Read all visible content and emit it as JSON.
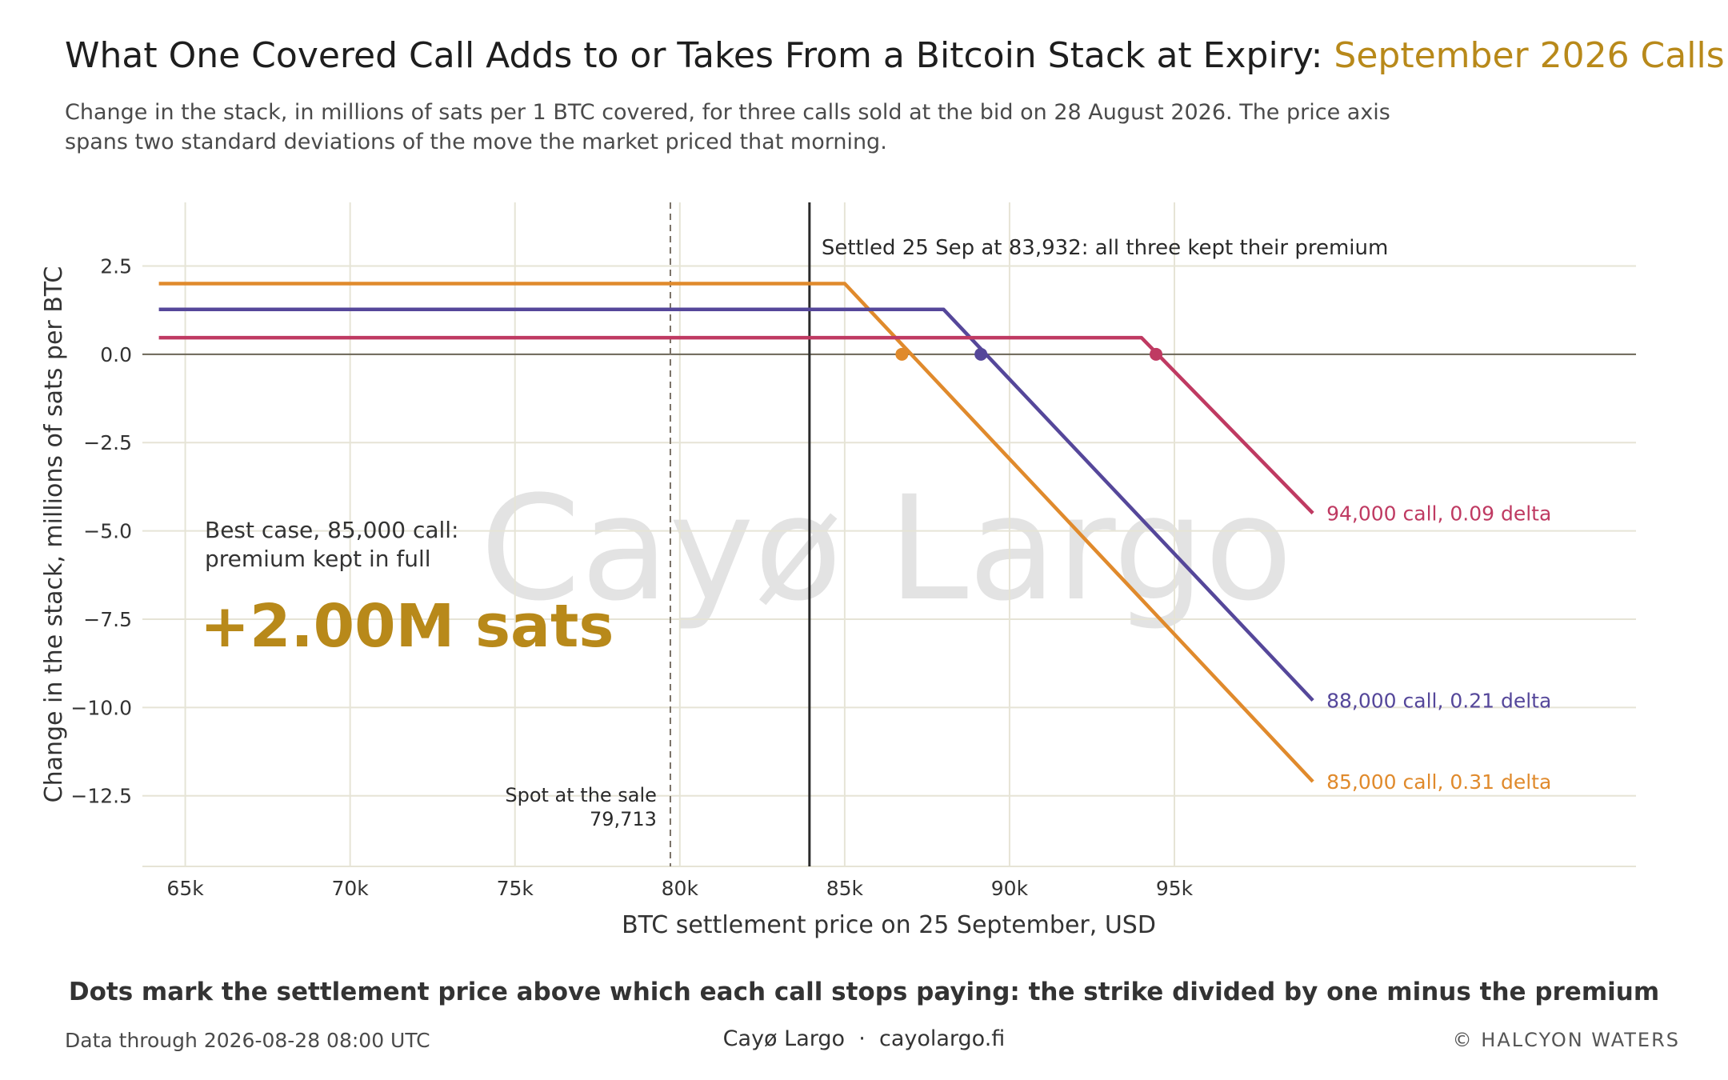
{
  "header": {
    "title_main": "What One Covered Call Adds to or Takes From a Bitcoin Stack at Expiry: ",
    "title_accent": "September 2026 Calls",
    "subtitle": "Change in the stack, in millions of sats per 1 BTC covered, for three calls sold at the bid on 28 August 2026. The price axis spans two standard deviations of the move the market priced that morning."
  },
  "colors": {
    "accent": "#b8891a",
    "c85": "#e08a2c",
    "c88": "#55479a",
    "c94": "#bf3a62",
    "grid": "#e6e4d6",
    "zero": "#6b6556",
    "settle": "#2a2a2a",
    "spot": "#7a7166",
    "watermark": "#e3e3e3"
  },
  "chart_data": {
    "type": "line",
    "xlabel": "BTC settlement price on 25 September, USD",
    "ylabel": "Change in the stack, millions of sats per BTC",
    "xlim": [
      63700,
      109000
    ],
    "ylim": [
      -14.5,
      4.3
    ],
    "x_ticks": [
      65000,
      70000,
      75000,
      80000,
      85000,
      90000,
      95000
    ],
    "x_tick_labels": [
      "65k",
      "70k",
      "75k",
      "80k",
      "85k",
      "90k",
      "95k"
    ],
    "y_ticks": [
      2.5,
      0.0,
      -2.5,
      -5.0,
      -7.5,
      -10.0,
      -12.5
    ],
    "y_tick_labels": [
      "2.5",
      "0.0",
      "−2.5",
      "−5.0",
      "−7.5",
      "−10.0",
      "−12.5"
    ],
    "x_range": [
      64200,
      99200
    ],
    "series": [
      {
        "name": "85,000 call, 0.31 delta",
        "strike": 85000,
        "premium_m": 2.0,
        "color_key": "c85",
        "breakeven": 86735,
        "end_y": -12.1
      },
      {
        "name": "88,000 call, 0.21 delta",
        "strike": 88000,
        "premium_m": 1.27,
        "color_key": "c88",
        "breakeven": 89132,
        "end_y": -9.8
      },
      {
        "name": "94,000 call, 0.09 delta",
        "strike": 94000,
        "premium_m": 0.47,
        "color_key": "c94",
        "breakeven": 94443,
        "end_y": -4.5
      }
    ],
    "settle": {
      "x": 83932,
      "label": "Settled 25 Sep at 83,932: all three kept their premium"
    },
    "spot": {
      "x": 79713,
      "label_line1": "Spot at the sale",
      "label_line2": "79,713"
    },
    "best_case": {
      "line1": "Best case, 85,000 call:",
      "line2": "premium kept in full",
      "value": "+2.00M sats"
    },
    "watermark": "Cayø Largo",
    "grid": true
  },
  "footer": {
    "note": "Dots mark the settlement price above which each call stops paying: the strike divided by one minus the premium",
    "data_through": "Data through 2026-08-28 08:00 UTC",
    "brand": "Cayø Largo",
    "sep": "·",
    "site": "cayolargo.fi",
    "copyright": "© HALCYON WATERS"
  }
}
